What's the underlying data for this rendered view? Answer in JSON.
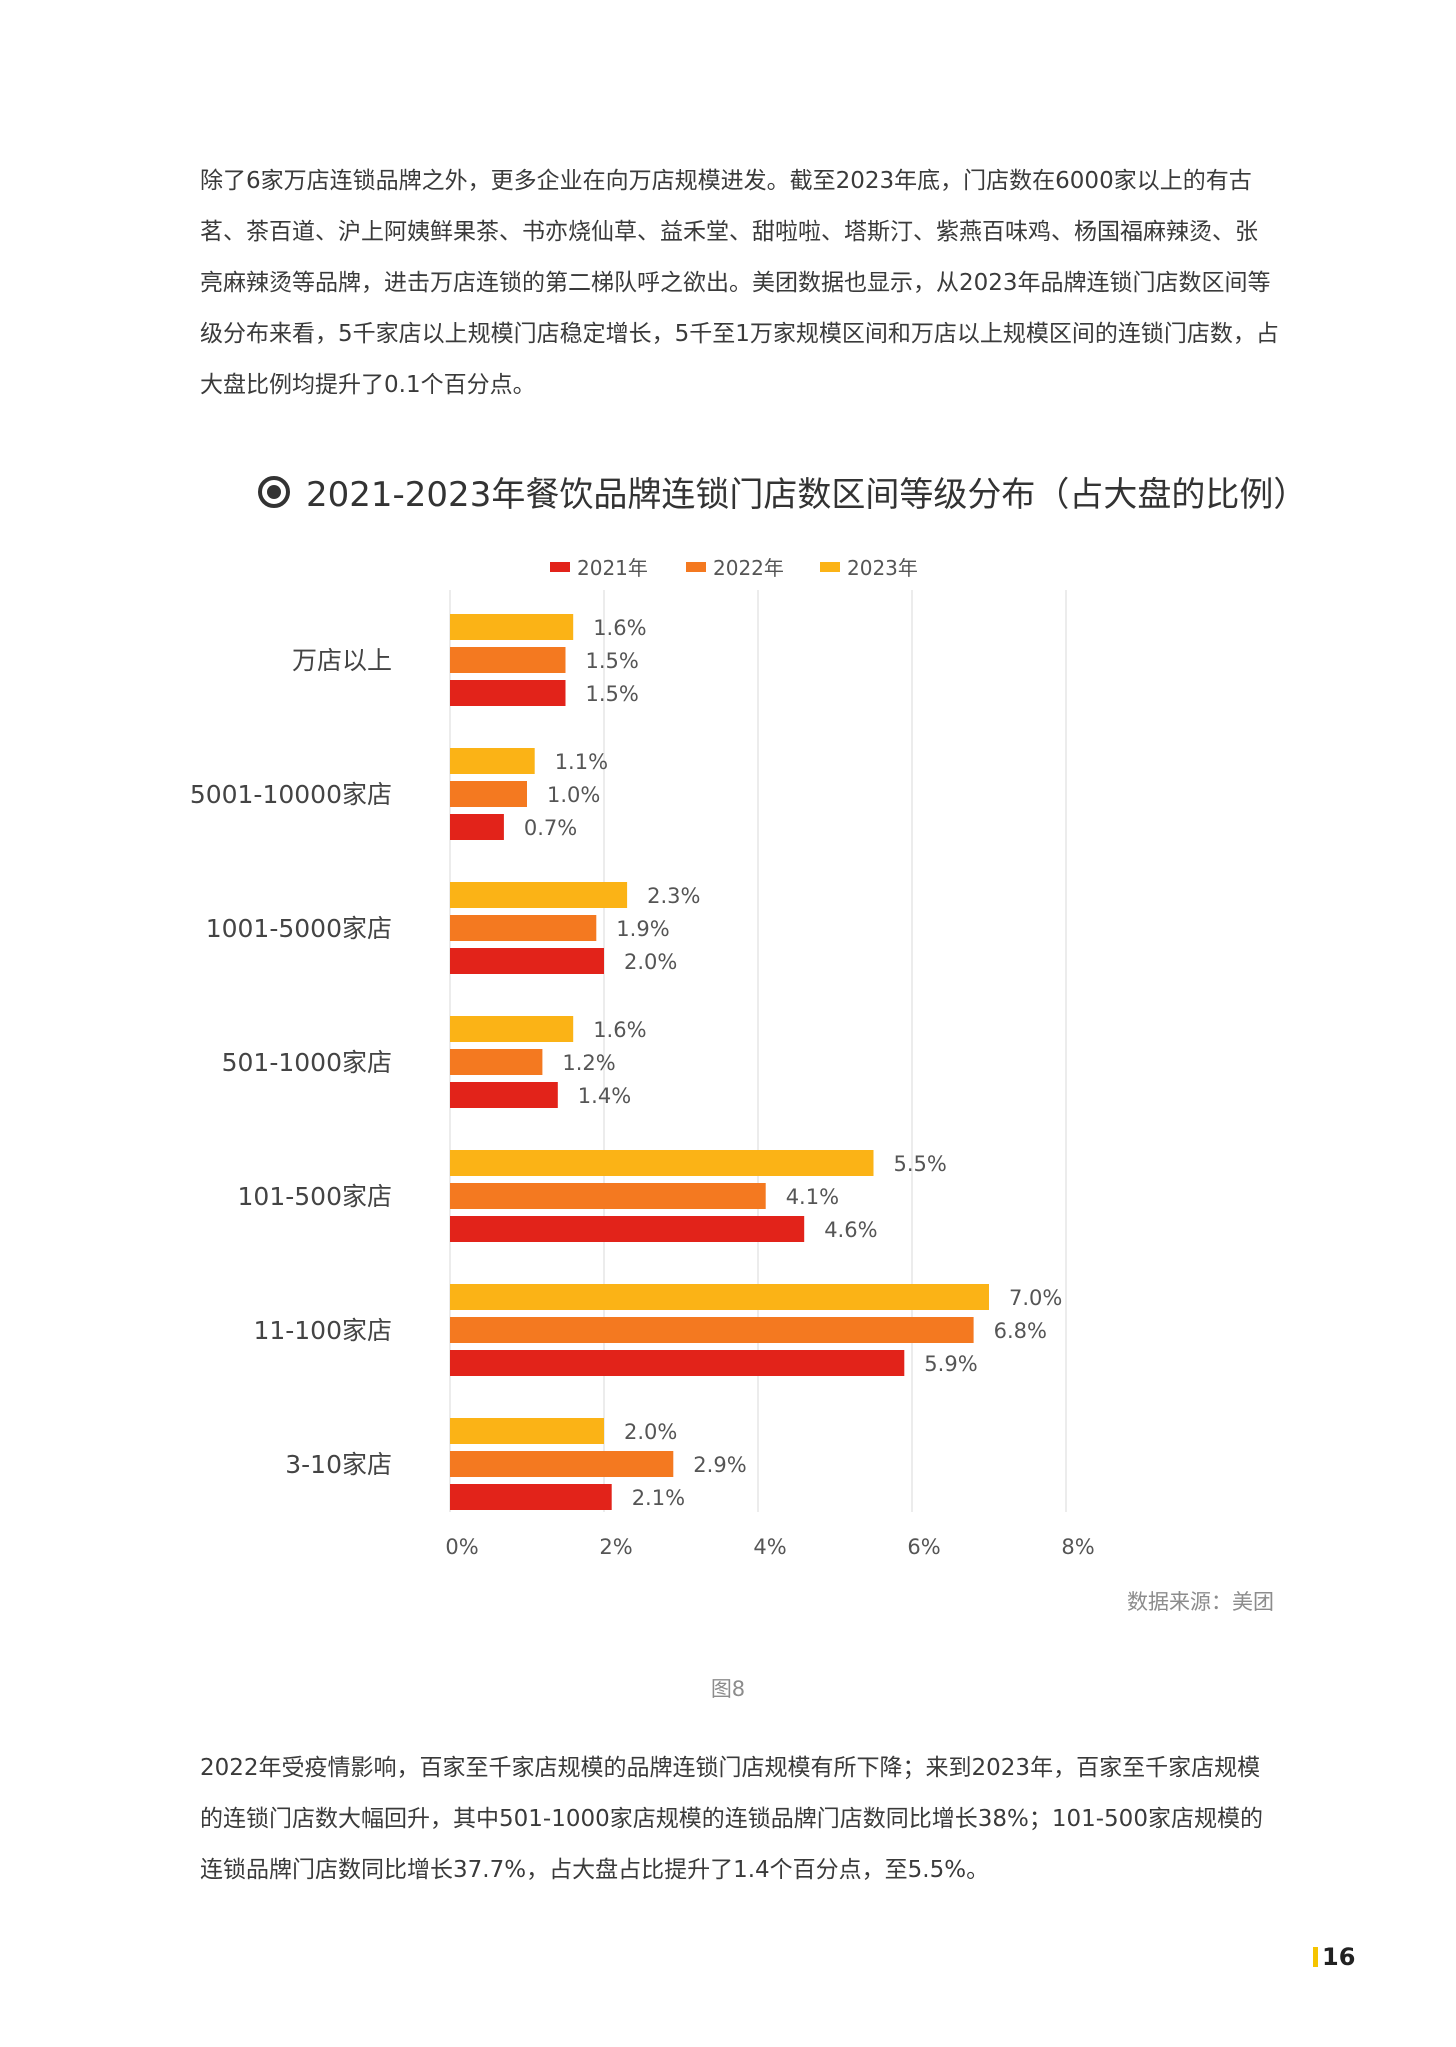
{
  "paragraphs": {
    "intro": "除了6家万店连锁品牌之外，更多企业在向万店规模进发。截至2023年底，门店数在6000家以上的有古茗、茶百道、沪上阿姨鲜果茶、书亦烧仙草、益禾堂、甜啦啦、塔斯汀、紫燕百味鸡、杨国福麻辣烫、张亮麻辣烫等品牌，进击万店连锁的第二梯队呼之欲出。美团数据也显示，从2023年品牌连锁门店数区间等级分布来看，5千家店以上规模门店稳定增长，5千至1万家规模区间和万店以上规模区间的连锁门店数，占大盘比例均提升了0.1个百分点。",
    "outro": "2022年受疫情影响，百家至千家店规模的品牌连锁门店规模有所下降；来到2023年，百家至千家店规模的连锁门店数大幅回升，其中501-1000家店规模的连锁品牌门店数同比增长38%；101-500家店规模的连锁品牌门店数同比增长37.7%，占大盘占比提升了1.4个百分点，至5.5%。"
  },
  "chart_title": "2021-2023年餐饮品牌连锁门店数区间等级分布（占大盘的比例）",
  "source_text": "数据来源：美团",
  "figure_caption": "图8",
  "page_number": "16",
  "chart_data": {
    "type": "bar",
    "orientation": "horizontal",
    "title": "2021-2023年餐饮品牌连锁门店数区间等级分布（占大盘的比例）",
    "categories": [
      "万店以上",
      "5001-10000家店",
      "1001-5000家店",
      "501-1000家店",
      "101-500家店",
      "11-100家店",
      "3-10家店"
    ],
    "series": [
      {
        "name": "2021年",
        "color": "#e2231a",
        "values": [
          1.5,
          0.7,
          2.0,
          1.4,
          4.6,
          5.9,
          2.1
        ],
        "labels": [
          "1.5%",
          "0.7%",
          "2.0%",
          "1.4%",
          "4.6%",
          "5.9%",
          "2.1%"
        ]
      },
      {
        "name": "2022年",
        "color": "#f47920",
        "values": [
          1.5,
          1.0,
          1.9,
          1.2,
          4.1,
          6.8,
          2.9
        ],
        "labels": [
          "1.5%",
          "1.0%",
          "1.9%",
          "1.2%",
          "4.1%",
          "6.8%",
          "2.9%"
        ]
      },
      {
        "name": "2023年",
        "color": "#fbb316",
        "values": [
          1.6,
          1.1,
          2.3,
          1.6,
          5.5,
          7.0,
          2.0
        ],
        "labels": [
          "1.6%",
          "1.1%",
          "2.3%",
          "1.6%",
          "5.5%",
          "7.0%",
          "2.0%"
        ]
      }
    ],
    "xlim": [
      0,
      8
    ],
    "x_ticks": [
      0,
      2,
      4,
      6,
      8
    ],
    "x_tick_labels": [
      "0%",
      "2%",
      "4%",
      "6%",
      "8%"
    ],
    "grid": true,
    "legend": "top"
  }
}
